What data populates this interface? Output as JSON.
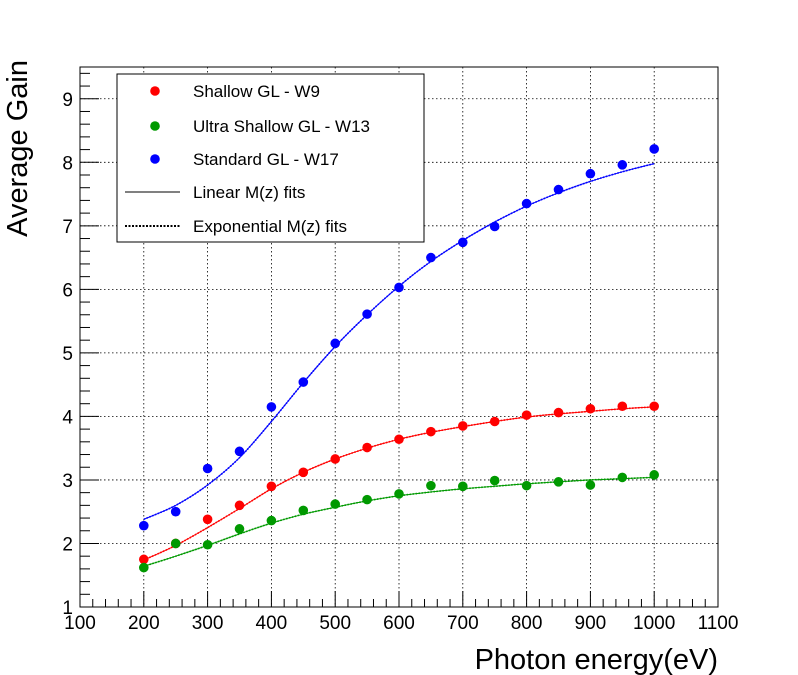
{
  "chart_data": {
    "type": "scatter",
    "title": "",
    "xlabel": "Photon energy(eV)",
    "ylabel": "Average Gain",
    "xlim": [
      100,
      1100
    ],
    "ylim": [
      1,
      9.5
    ],
    "xticks": [
      100,
      200,
      300,
      400,
      500,
      600,
      700,
      800,
      900,
      1000,
      1100
    ],
    "yticks": [
      1,
      2,
      3,
      4,
      5,
      6,
      7,
      8,
      9
    ],
    "grid": true,
    "legend_position": "top-left",
    "series": [
      {
        "name": "Shallow  GL - W9",
        "color": "#ff0000",
        "x": [
          200,
          250,
          300,
          350,
          400,
          450,
          500,
          550,
          600,
          650,
          700,
          750,
          800,
          850,
          900,
          950,
          1000
        ],
        "y": [
          1.75,
          2.0,
          2.38,
          2.6,
          2.9,
          3.12,
          3.33,
          3.51,
          3.64,
          3.76,
          3.85,
          3.92,
          4.02,
          4.06,
          4.12,
          4.16,
          4.16
        ],
        "fit_y": [
          1.74,
          1.97,
          2.25,
          2.55,
          2.86,
          3.12,
          3.33,
          3.5,
          3.64,
          3.75,
          3.84,
          3.92,
          3.99,
          4.04,
          4.08,
          4.12,
          4.15
        ]
      },
      {
        "name": "Ultra Shallow GL - W13",
        "color": "#009900",
        "x": [
          200,
          250,
          300,
          350,
          400,
          450,
          500,
          550,
          600,
          650,
          700,
          750,
          800,
          850,
          900,
          950,
          1000
        ],
        "y": [
          1.62,
          2.0,
          1.98,
          2.23,
          2.36,
          2.52,
          2.62,
          2.69,
          2.78,
          2.91,
          2.9,
          2.99,
          2.91,
          2.97,
          2.92,
          3.04,
          3.08
        ],
        "fit_y": [
          1.64,
          1.8,
          1.97,
          2.15,
          2.32,
          2.46,
          2.57,
          2.67,
          2.75,
          2.81,
          2.86,
          2.9,
          2.94,
          2.97,
          3.0,
          3.02,
          3.04
        ]
      },
      {
        "name": "Standard  GL - W17",
        "color": "#0000ff",
        "x": [
          200,
          250,
          300,
          350,
          400,
          450,
          500,
          550,
          600,
          650,
          700,
          750,
          800,
          850,
          900,
          950,
          1000
        ],
        "y": [
          2.28,
          2.5,
          3.18,
          3.45,
          4.15,
          4.54,
          5.15,
          5.61,
          6.03,
          6.5,
          6.74,
          6.99,
          7.35,
          7.57,
          7.82,
          7.96,
          8.21
        ],
        "fit_y": [
          2.38,
          2.6,
          2.92,
          3.35,
          3.92,
          4.53,
          5.1,
          5.6,
          6.05,
          6.44,
          6.77,
          7.06,
          7.31,
          7.52,
          7.7,
          7.85,
          7.98
        ]
      }
    ],
    "legend_entries": [
      {
        "label": "Shallow  GL - W9",
        "kind": "marker",
        "color": "#ff0000"
      },
      {
        "label": "Ultra Shallow GL - W13",
        "kind": "marker",
        "color": "#009900"
      },
      {
        "label": "Standard  GL - W17",
        "kind": "marker",
        "color": "#0000ff"
      },
      {
        "label": "Linear M(z) fits",
        "kind": "solid-line",
        "color": "#000000"
      },
      {
        "label": "Exponential M(z) fits",
        "kind": "dotted-line",
        "color": "#000000"
      }
    ]
  }
}
